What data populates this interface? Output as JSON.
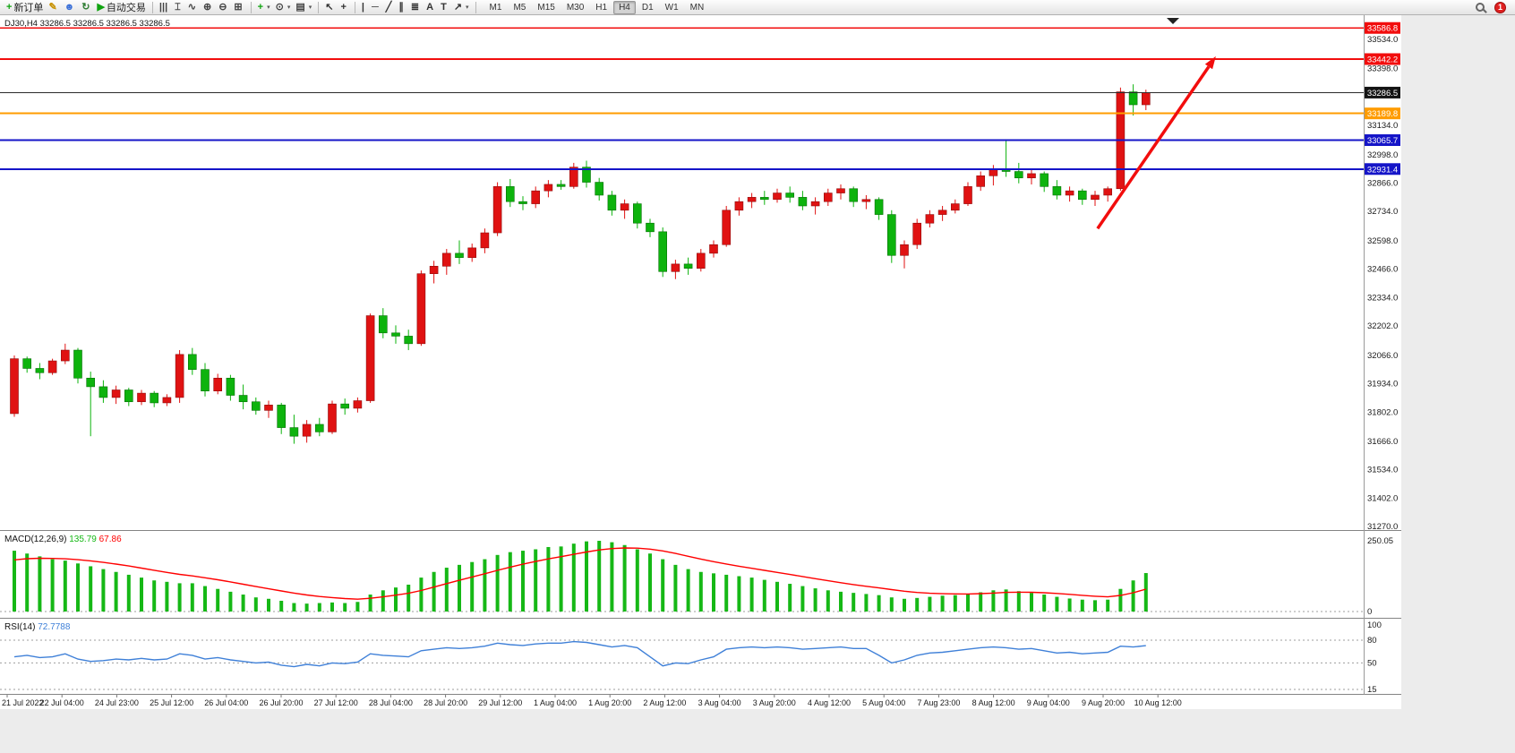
{
  "toolbar": {
    "items": [
      {
        "type": "button",
        "name": "new-order-button",
        "glyph": "+",
        "color": "#0fa30f",
        "label": "新订单"
      },
      {
        "type": "icon",
        "name": "metaeditor-icon",
        "glyph": "✎",
        "color": "#c79100"
      },
      {
        "type": "icon",
        "name": "profile-icon",
        "glyph": "☻",
        "color": "#3a6fd8"
      },
      {
        "type": "icon",
        "name": "refresh-icon",
        "glyph": "↻",
        "color": "#2e7d32"
      },
      {
        "type": "button",
        "name": "autotrading-button",
        "glyph": "▶",
        "color": "#0fa30f",
        "label": "自动交易"
      },
      {
        "type": "sep"
      },
      {
        "type": "icon",
        "name": "bar-chart-icon",
        "glyph": "|||",
        "color": "#444444"
      },
      {
        "type": "icon",
        "name": "candlestick-chart-icon",
        "glyph": "⌶",
        "color": "#444444"
      },
      {
        "type": "icon",
        "name": "line-chart-icon",
        "glyph": "∿",
        "color": "#444444"
      },
      {
        "type": "icon",
        "name": "zoom-in-icon",
        "glyph": "⊕",
        "color": "#444444"
      },
      {
        "type": "icon",
        "name": "zoom-out-icon",
        "glyph": "⊖",
        "color": "#444444"
      },
      {
        "type": "icon",
        "name": "tile-windows-icon",
        "glyph": "⊞",
        "color": "#444444"
      },
      {
        "type": "sep"
      },
      {
        "type": "icon",
        "name": "indicators-icon",
        "glyph": "+",
        "color": "#0fa30f",
        "dropdown": true
      },
      {
        "type": "icon",
        "name": "periods-icon",
        "glyph": "⊙",
        "color": "#444444",
        "dropdown": true
      },
      {
        "type": "icon",
        "name": "templates-icon",
        "glyph": "▤",
        "color": "#444444",
        "dropdown": true
      },
      {
        "type": "sep"
      },
      {
        "type": "icon",
        "name": "cursor-icon",
        "glyph": "↖",
        "color": "#333333"
      },
      {
        "type": "icon",
        "name": "crosshair-icon",
        "glyph": "+",
        "color": "#333333"
      },
      {
        "type": "sep"
      },
      {
        "type": "icon",
        "name": "vertical-line-icon",
        "glyph": "|",
        "color": "#333333"
      },
      {
        "type": "icon",
        "name": "horizontal-line-icon",
        "glyph": "─",
        "color": "#333333"
      },
      {
        "type": "icon",
        "name": "trendline-icon",
        "glyph": "╱",
        "color": "#333333"
      },
      {
        "type": "icon",
        "name": "channel-icon",
        "glyph": "∥",
        "color": "#333333"
      },
      {
        "type": "icon",
        "name": "fibonacci-icon",
        "glyph": "≣",
        "color": "#333333"
      },
      {
        "type": "icon",
        "name": "text-icon",
        "glyph": "A",
        "color": "#333333"
      },
      {
        "type": "icon",
        "name": "text-label-icon",
        "glyph": "T",
        "color": "#333333"
      },
      {
        "type": "icon",
        "name": "arrows-icon",
        "glyph": "↗",
        "color": "#333333",
        "dropdown": true
      },
      {
        "type": "sep"
      }
    ],
    "timeframes": [
      "M1",
      "M5",
      "M15",
      "M30",
      "H1",
      "H4",
      "D1",
      "W1",
      "MN"
    ],
    "active_timeframe": "H4",
    "notification_count": "1"
  },
  "chart_data": {
    "type": "candlestick",
    "symbol": "DJ30",
    "period": "H4",
    "info_line": "DJ30,H4 33286.5 33286.5 33286.5 33286.5",
    "current_price": "33286.5",
    "ylim": [
      31254,
      33646
    ],
    "y_ticks": [
      "33534.0",
      "33398.0",
      "33134.0",
      "32998.0",
      "32866.0",
      "32734.0",
      "32598.0",
      "32466.0",
      "32334.0",
      "32202.0",
      "32066.0",
      "31934.0",
      "31802.0",
      "31666.0",
      "31534.0",
      "31402.0",
      "31270.0"
    ],
    "x_labels": [
      "21 Jul 2022",
      "22 Jul 04:00",
      "24 Jul 23:00",
      "25 Jul 12:00",
      "26 Jul 04:00",
      "26 Jul 20:00",
      "27 Jul 12:00",
      "28 Jul 04:00",
      "28 Jul 20:00",
      "29 Jul 12:00",
      "1 Aug 04:00",
      "1 Aug 20:00",
      "2 Aug 12:00",
      "3 Aug 04:00",
      "3 Aug 20:00",
      "4 Aug 12:00",
      "5 Aug 04:00",
      "7 Aug 23:00",
      "8 Aug 12:00",
      "9 Aug 04:00",
      "9 Aug 20:00",
      "10 Aug 12:00"
    ],
    "candles_ohlc": [
      [
        31795,
        32065,
        31780,
        32050
      ],
      [
        32050,
        32060,
        31985,
        32005
      ],
      [
        32005,
        32030,
        31955,
        31985
      ],
      [
        31985,
        32050,
        31975,
        32040
      ],
      [
        32040,
        32120,
        32025,
        32090
      ],
      [
        32090,
        32100,
        31935,
        31960
      ],
      [
        31960,
        31990,
        31690,
        31920
      ],
      [
        31920,
        31950,
        31845,
        31870
      ],
      [
        31870,
        31925,
        31840,
        31905
      ],
      [
        31905,
        31915,
        31830,
        31850
      ],
      [
        31850,
        31905,
        31835,
        31890
      ],
      [
        31890,
        31900,
        31825,
        31845
      ],
      [
        31845,
        31885,
        31830,
        31870
      ],
      [
        31870,
        32090,
        31845,
        32070
      ],
      [
        32070,
        32100,
        31975,
        32000
      ],
      [
        32000,
        32030,
        31875,
        31900
      ],
      [
        31900,
        31980,
        31885,
        31960
      ],
      [
        31960,
        31975,
        31855,
        31880
      ],
      [
        31880,
        31930,
        31815,
        31850
      ],
      [
        31850,
        31870,
        31790,
        31810
      ],
      [
        31810,
        31855,
        31775,
        31835
      ],
      [
        31835,
        31845,
        31700,
        31730
      ],
      [
        31730,
        31790,
        31655,
        31690
      ],
      [
        31690,
        31765,
        31660,
        31745
      ],
      [
        31745,
        31775,
        31690,
        31710
      ],
      [
        31710,
        31855,
        31700,
        31840
      ],
      [
        31840,
        31865,
        31790,
        31820
      ],
      [
        31820,
        31870,
        31800,
        31855
      ],
      [
        31855,
        32260,
        31845,
        32250
      ],
      [
        32250,
        32285,
        32145,
        32170
      ],
      [
        32170,
        32205,
        32120,
        32155
      ],
      [
        32155,
        32185,
        32090,
        32120
      ],
      [
        32120,
        32460,
        32110,
        32445
      ],
      [
        32445,
        32505,
        32400,
        32480
      ],
      [
        32480,
        32560,
        32440,
        32540
      ],
      [
        32540,
        32600,
        32490,
        32520
      ],
      [
        32520,
        32585,
        32500,
        32565
      ],
      [
        32565,
        32655,
        32540,
        32635
      ],
      [
        32635,
        32870,
        32620,
        32850
      ],
      [
        32850,
        32885,
        32755,
        32780
      ],
      [
        32780,
        32805,
        32740,
        32770
      ],
      [
        32770,
        32850,
        32750,
        32830
      ],
      [
        32830,
        32880,
        32800,
        32860
      ],
      [
        32860,
        32880,
        32835,
        32850
      ],
      [
        32850,
        32960,
        32840,
        32940
      ],
      [
        32940,
        32970,
        32845,
        32870
      ],
      [
        32870,
        32890,
        32785,
        32810
      ],
      [
        32810,
        32830,
        32715,
        32740
      ],
      [
        32740,
        32790,
        32700,
        32770
      ],
      [
        32770,
        32780,
        32655,
        32680
      ],
      [
        32680,
        32700,
        32615,
        32640
      ],
      [
        32640,
        32660,
        32430,
        32455
      ],
      [
        32455,
        32510,
        32420,
        32490
      ],
      [
        32490,
        32520,
        32440,
        32470
      ],
      [
        32470,
        32560,
        32455,
        32540
      ],
      [
        32540,
        32600,
        32520,
        32580
      ],
      [
        32580,
        32760,
        32570,
        32740
      ],
      [
        32740,
        32800,
        32715,
        32780
      ],
      [
        32780,
        32820,
        32750,
        32800
      ],
      [
        32800,
        32830,
        32765,
        32790
      ],
      [
        32790,
        32840,
        32775,
        32820
      ],
      [
        32820,
        32850,
        32775,
        32800
      ],
      [
        32800,
        32830,
        32740,
        32760
      ],
      [
        32760,
        32800,
        32720,
        32780
      ],
      [
        32780,
        32840,
        32760,
        32820
      ],
      [
        32820,
        32860,
        32790,
        32840
      ],
      [
        32840,
        32850,
        32755,
        32780
      ],
      [
        32780,
        32810,
        32745,
        32790
      ],
      [
        32790,
        32800,
        32695,
        32720
      ],
      [
        32720,
        32740,
        32495,
        32530
      ],
      [
        32530,
        32600,
        32470,
        32580
      ],
      [
        32580,
        32700,
        32560,
        32680
      ],
      [
        32680,
        32740,
        32660,
        32720
      ],
      [
        32720,
        32760,
        32690,
        32740
      ],
      [
        32740,
        32790,
        32725,
        32770
      ],
      [
        32770,
        32870,
        32760,
        32850
      ],
      [
        32850,
        32920,
        32830,
        32900
      ],
      [
        32900,
        32950,
        32855,
        32930
      ],
      [
        32930,
        33070,
        32895,
        32920
      ],
      [
        32920,
        32960,
        32865,
        32890
      ],
      [
        32890,
        32930,
        32860,
        32910
      ],
      [
        32910,
        32920,
        32825,
        32850
      ],
      [
        32850,
        32880,
        32790,
        32810
      ],
      [
        32810,
        32850,
        32780,
        32830
      ],
      [
        32830,
        32840,
        32765,
        32790
      ],
      [
        32790,
        32830,
        32760,
        32810
      ],
      [
        32810,
        32850,
        32780,
        32840
      ],
      [
        32840,
        33310,
        32830,
        33290
      ],
      [
        33290,
        33325,
        33180,
        33230
      ],
      [
        33230,
        33300,
        33205,
        33286.5
      ]
    ],
    "hlines": [
      {
        "price": 33586.8,
        "label": "33586.8",
        "color": "#f20d0d",
        "badge": "#f20d0d",
        "width": 1.5
      },
      {
        "price": 33442.2,
        "label": "33442.2",
        "color": "#f20d0d",
        "badge": "#f20d0d",
        "width": 2
      },
      {
        "price": 33286.5,
        "label": "33286.5",
        "color": "#2b2b2b",
        "badge": "#141414",
        "width": 1
      },
      {
        "price": 33189.8,
        "label": "33189.8",
        "color": "#ff9c00",
        "badge": "#ff9c00",
        "width": 2
      },
      {
        "price": 33065.7,
        "label": "33065.7",
        "color": "#1515c8",
        "badge": "#1515c8",
        "width": 2
      },
      {
        "price": 32931.4,
        "label": "32931.4",
        "color": "#1515c8",
        "badge": "#1515c8",
        "width": 2
      }
    ],
    "arrow": {
      "x1_bar": 85.2,
      "y1_price": 32655,
      "x2_bar": 94.5,
      "y2_price": 33455,
      "color": "#f20d0d",
      "width": 3.5
    },
    "macd": {
      "label": "MACD(12,26,9)",
      "value_main": "135.79",
      "value_signal": "67.86",
      "axis": [
        "250.05",
        "0"
      ],
      "ymax": 250.05,
      "values": [
        215,
        205,
        195,
        185,
        180,
        170,
        160,
        150,
        140,
        130,
        120,
        110,
        105,
        100,
        100,
        90,
        80,
        70,
        60,
        50,
        45,
        38,
        30,
        28,
        30,
        32,
        30,
        34,
        60,
        75,
        85,
        95,
        120,
        140,
        155,
        165,
        175,
        185,
        200,
        210,
        215,
        220,
        228,
        230,
        240,
        248,
        250,
        245,
        235,
        220,
        205,
        185,
        165,
        150,
        140,
        135,
        130,
        125,
        120,
        112,
        105,
        98,
        90,
        82,
        75,
        70,
        66,
        62,
        58,
        50,
        45,
        48,
        52,
        56,
        58,
        62,
        68,
        75,
        78,
        72,
        66,
        60,
        52,
        46,
        42,
        40,
        42,
        80,
        110,
        136
      ]
    },
    "rsi": {
      "label": "RSI(14)",
      "value": "72.7788",
      "axis": [
        "100",
        "80",
        "50",
        "15"
      ],
      "levels": [
        80,
        50,
        15
      ],
      "values": [
        58,
        60,
        57,
        58,
        62,
        55,
        52,
        53,
        55,
        54,
        56,
        54,
        55,
        62,
        60,
        55,
        57,
        54,
        52,
        50,
        51,
        47,
        45,
        48,
        46,
        50,
        49,
        51,
        62,
        60,
        59,
        58,
        66,
        68,
        70,
        69,
        70,
        72,
        76,
        74,
        73,
        75,
        76,
        76,
        78,
        77,
        74,
        71,
        73,
        70,
        58,
        46,
        50,
        49,
        54,
        58,
        68,
        70,
        71,
        70,
        71,
        70,
        68,
        69,
        70,
        71,
        69,
        69,
        60,
        50,
        54,
        60,
        63,
        64,
        66,
        68,
        70,
        71,
        70,
        68,
        69,
        66,
        63,
        64,
        62,
        63,
        64,
        72,
        71,
        72.78
      ]
    },
    "colors": {
      "up": "#e01212",
      "up_stroke": "#8f0b0b",
      "down": "#0db30d",
      "down_stroke": "#077107",
      "macd_bar": "#16b816",
      "macd_signal": "#ff0000",
      "rsi_line": "#3f80d8",
      "axis_text": "#1a1a1a",
      "separator": "#848484",
      "level_dash": "#9e9e9e"
    }
  }
}
